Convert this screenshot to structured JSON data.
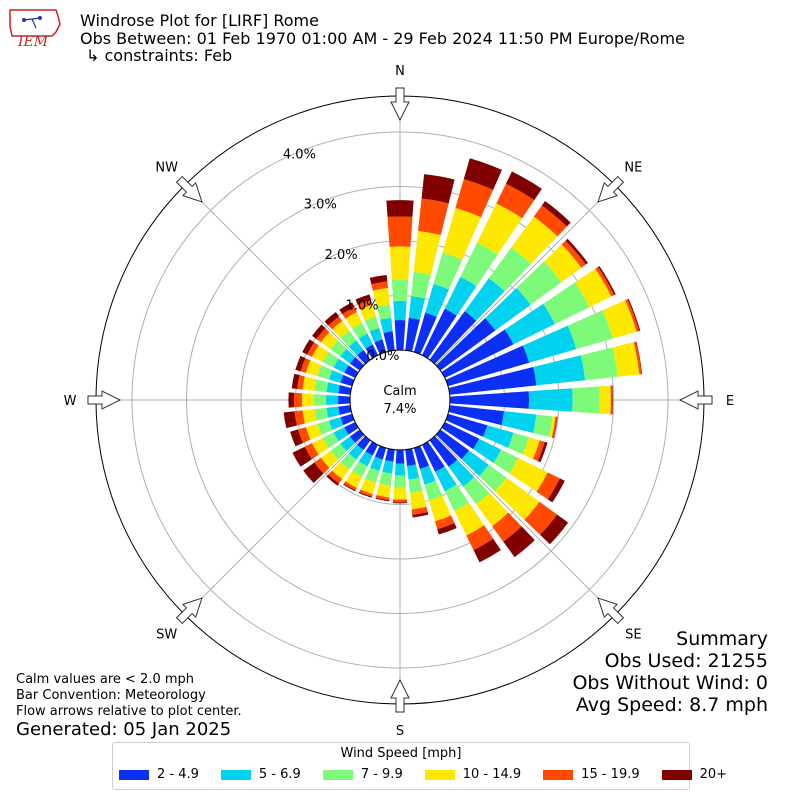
{
  "header": {
    "title": "Windrose Plot for [LIRF] Rome",
    "obs_between": "Obs Between: 01 Feb 1970 01:00 AM - 29 Feb 2024 11:50 PM Europe/Rome",
    "constraints": "↳ constraints: Feb"
  },
  "logo": {
    "text": "IEM",
    "icon": "iowa-state-map-icon",
    "color": "#cc2222"
  },
  "notes": {
    "calm_note": "Calm values are < 2.0 mph",
    "bar_convention": "Bar Convention: Meteorology",
    "flow_note": "Flow arrows relative to plot center.",
    "generated": "Generated: 05 Jan 2025"
  },
  "summary": {
    "title": "Summary",
    "obs_used": "Obs Used: 21255",
    "obs_without_wind": "Obs Without Wind: 0",
    "avg_speed": "Avg Speed: 8.7 mph"
  },
  "legend": {
    "title": "Wind Speed [mph]",
    "items": [
      {
        "label": "2 - 4.9",
        "color": "#0c2ff5"
      },
      {
        "label": "5 - 6.9",
        "color": "#00d2ef"
      },
      {
        "label": "7 - 9.9",
        "color": "#7dfa7a"
      },
      {
        "label": "10 - 14.9",
        "color": "#ffe800"
      },
      {
        "label": "15 - 19.9",
        "color": "#ff4a00"
      },
      {
        "label": "20+",
        "color": "#800000"
      }
    ]
  },
  "chart_data": {
    "type": "windrose",
    "calm_label": "Calm",
    "calm_percent": "7.4%",
    "calm_value": 7.4,
    "radial_unit": "%",
    "radial_ticks": [
      0.0,
      1.0,
      2.0,
      3.0,
      4.0
    ],
    "radial_tick_labels": [
      "0.0%",
      "1.0%",
      "2.0%",
      "3.0%",
      "4.0%"
    ],
    "radial_max": 4.66,
    "direction_labels": [
      "N",
      "NE",
      "E",
      "SE",
      "S",
      "SW",
      "W",
      "NW"
    ],
    "direction_angles": [
      0,
      45,
      90,
      135,
      180,
      225,
      270,
      315
    ],
    "bin_centers": [
      0,
      10,
      20,
      30,
      40,
      50,
      60,
      70,
      80,
      90,
      100,
      110,
      120,
      130,
      140,
      150,
      160,
      170,
      180,
      190,
      200,
      210,
      220,
      230,
      240,
      250,
      260,
      270,
      280,
      290,
      300,
      310,
      320,
      330,
      340,
      350
    ],
    "series": [
      {
        "name": "2 - 4.9",
        "values": [
          0.55,
          0.6,
          0.75,
          0.95,
          1.1,
          1.25,
          1.4,
          1.55,
          1.6,
          1.45,
          1.0,
          0.75,
          0.7,
          0.65,
          0.6,
          0.55,
          0.4,
          0.3,
          0.25,
          0.22,
          0.22,
          0.22,
          0.22,
          0.22,
          0.22,
          0.22,
          0.22,
          0.22,
          0.22,
          0.22,
          0.22,
          0.22,
          0.22,
          0.22,
          0.24,
          0.35
        ]
      },
      {
        "name": "5 - 6.9",
        "values": [
          0.35,
          0.4,
          0.55,
          0.65,
          0.75,
          0.8,
          0.85,
          0.9,
          0.9,
          0.8,
          0.6,
          0.5,
          0.45,
          0.45,
          0.45,
          0.4,
          0.3,
          0.25,
          0.22,
          0.22,
          0.22,
          0.22,
          0.22,
          0.22,
          0.22,
          0.22,
          0.22,
          0.22,
          0.22,
          0.22,
          0.22,
          0.22,
          0.22,
          0.22,
          0.22,
          0.25
        ]
      },
      {
        "name": "7 - 9.9",
        "values": [
          0.4,
          0.45,
          0.6,
          0.7,
          0.7,
          0.7,
          0.7,
          0.7,
          0.6,
          0.5,
          0.3,
          0.3,
          0.35,
          0.4,
          0.4,
          0.4,
          0.3,
          0.25,
          0.22,
          0.22,
          0.22,
          0.22,
          0.22,
          0.22,
          0.22,
          0.22,
          0.22,
          0.22,
          0.22,
          0.22,
          0.22,
          0.22,
          0.22,
          0.22,
          0.22,
          0.25
        ]
      },
      {
        "name": "10 - 14.9",
        "values": [
          0.6,
          0.75,
          0.85,
          0.8,
          0.7,
          0.45,
          0.45,
          0.45,
          0.4,
          0.2,
          0.05,
          0.2,
          0.6,
          0.75,
          0.5,
          0.5,
          0.4,
          0.3,
          0.22,
          0.22,
          0.22,
          0.22,
          0.22,
          0.22,
          0.22,
          0.22,
          0.22,
          0.22,
          0.22,
          0.22,
          0.22,
          0.22,
          0.22,
          0.22,
          0.22,
          0.3
        ]
      },
      {
        "name": "15 - 19.9",
        "values": [
          0.55,
          0.6,
          0.55,
          0.4,
          0.25,
          0.1,
          0.06,
          0.05,
          0.04,
          0.03,
          0.03,
          0.1,
          0.25,
          0.4,
          0.35,
          0.3,
          0.15,
          0.1,
          0.05,
          0.05,
          0.05,
          0.05,
          0.1,
          0.15,
          0.15,
          0.15,
          0.15,
          0.15,
          0.1,
          0.1,
          0.1,
          0.1,
          0.1,
          0.1,
          0.1,
          0.12
        ]
      },
      {
        "name": "20+",
        "values": [
          0.3,
          0.45,
          0.4,
          0.25,
          0.1,
          0.05,
          0.03,
          0.02,
          0.01,
          0.01,
          0.01,
          0.05,
          0.1,
          0.25,
          0.35,
          0.25,
          0.1,
          0.05,
          0.02,
          0.02,
          0.02,
          0.02,
          0.05,
          0.25,
          0.25,
          0.15,
          0.2,
          0.1,
          0.1,
          0.1,
          0.1,
          0.1,
          0.1,
          0.1,
          0.1,
          0.12
        ]
      }
    ]
  }
}
